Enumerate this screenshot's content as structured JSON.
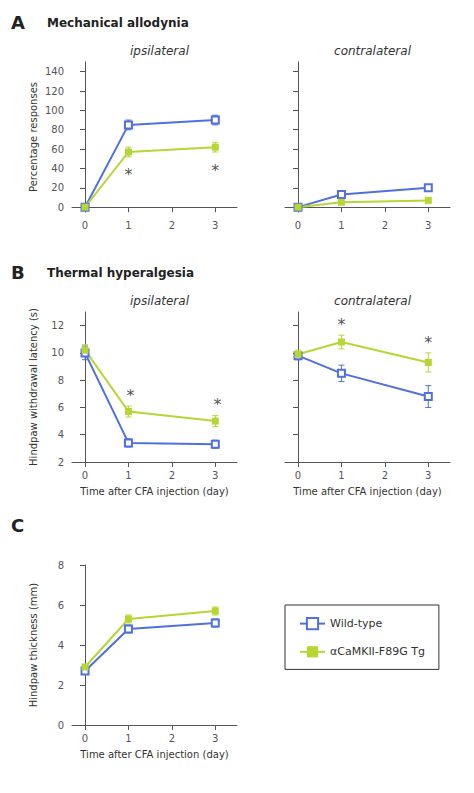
{
  "chart_data": [
    {
      "type": "line",
      "panel": "A",
      "title": "Mechanical allodynia",
      "subtitle": "ipsilateral",
      "x": [
        0,
        1,
        3
      ],
      "series": [
        {
          "name": "Wild-type",
          "marker": "square-open",
          "values": [
            0,
            85,
            90
          ],
          "errors": [
            0,
            5,
            5
          ]
        },
        {
          "name": "αCaMKII-F89G Tg",
          "marker": "square",
          "values": [
            0,
            57,
            62
          ],
          "errors": [
            0,
            5,
            5
          ]
        }
      ],
      "ylabel": "Percentage responses",
      "xlim": [
        -0.3,
        3.5
      ],
      "xticks": [
        0,
        1,
        2,
        3
      ],
      "ylim": [
        -5,
        150
      ],
      "yticks": [
        0,
        20,
        40,
        60,
        80,
        100,
        120,
        140
      ],
      "grid": false,
      "annotations": [
        {
          "text": "*",
          "x": 1.0,
          "y": 26
        },
        {
          "text": "*",
          "x": 3.0,
          "y": 30
        }
      ]
    },
    {
      "type": "line",
      "subtitle": "contralateral",
      "x": [
        0,
        1,
        3
      ],
      "series": [
        {
          "name": "Wild-type",
          "marker": "square-open",
          "values": [
            0,
            13,
            20
          ],
          "errors": [
            0,
            3,
            3
          ]
        },
        {
          "name": "αCaMKII-F89G Tg",
          "marker": "square",
          "values": [
            0,
            5,
            7
          ],
          "errors": [
            0,
            2,
            2
          ]
        }
      ],
      "xlim": [
        -0.3,
        3.5
      ],
      "xticks": [
        0,
        1,
        2,
        3
      ],
      "ylim": [
        -5,
        150
      ],
      "yticks": [
        0,
        20,
        40,
        60,
        80,
        100,
        120,
        140
      ],
      "grid": false,
      "tick_labels": "x"
    },
    {
      "type": "line",
      "panel": "B",
      "title": "Thermal hyperalgesia",
      "subtitle": "ipsilateral",
      "x": [
        0,
        1,
        3
      ],
      "series": [
        {
          "name": "Wild-type",
          "marker": "square-open",
          "values": [
            10.0,
            3.4,
            3.3
          ],
          "errors": [
            0.5,
            0.3,
            0.3
          ]
        },
        {
          "name": "αCaMKII-F89G Tg",
          "marker": "square",
          "values": [
            10.2,
            5.7,
            5.0
          ],
          "errors": [
            0.4,
            0.4,
            0.4
          ]
        }
      ],
      "xlabel": "Time after CFA injection (day)",
      "ylabel": "Hindpaw withdrawal latency (s)",
      "xlim": [
        -0.3,
        3.5
      ],
      "xticks": [
        0,
        1,
        2,
        3
      ],
      "ylim": [
        2,
        13
      ],
      "yticks": [
        2,
        4,
        6,
        8,
        10,
        12
      ],
      "grid": false,
      "annotations": [
        {
          "text": "*",
          "x": 1.05,
          "y": 6.3
        },
        {
          "text": "*",
          "x": 3.05,
          "y": 5.6
        }
      ]
    },
    {
      "type": "line",
      "subtitle": "contralateral",
      "x": [
        0,
        1,
        3
      ],
      "series": [
        {
          "name": "Wild-type",
          "marker": "square-open",
          "values": [
            9.8,
            8.5,
            6.8
          ],
          "errors": [
            0.3,
            0.6,
            0.8
          ]
        },
        {
          "name": "αCaMKII-F89G Tg",
          "marker": "square",
          "values": [
            9.9,
            10.8,
            9.3
          ],
          "errors": [
            0.3,
            0.5,
            0.7
          ]
        }
      ],
      "xlabel": "Time after CFA injection (day)",
      "xlim": [
        -0.3,
        3.5
      ],
      "xticks": [
        0,
        1,
        2,
        3
      ],
      "ylim": [
        2,
        13
      ],
      "yticks": [
        2,
        4,
        6,
        8,
        10,
        12
      ],
      "grid": false,
      "tick_labels": "x",
      "annotations": [
        {
          "text": "*",
          "x": 1.0,
          "y": 11.5
        },
        {
          "text": "*",
          "x": 3.0,
          "y": 10.2
        }
      ]
    },
    {
      "type": "line",
      "panel": "C",
      "x": [
        0,
        1,
        3
      ],
      "series": [
        {
          "name": "Wild-type",
          "marker": "square-open",
          "values": [
            2.7,
            4.8,
            5.1
          ],
          "errors": [
            0.1,
            0.2,
            0.2
          ]
        },
        {
          "name": "αCaMKII-F89G Tg",
          "marker": "square",
          "values": [
            2.9,
            5.3,
            5.7
          ],
          "errors": [
            0.1,
            0.2,
            0.2
          ]
        }
      ],
      "xlabel": "Time after CFA injection (day)",
      "ylabel": "Hindpaw thickness (mm)",
      "xlim": [
        -0.3,
        3.5
      ],
      "xticks": [
        0,
        1,
        2,
        3
      ],
      "ylim": [
        0,
        8
      ],
      "yticks": [
        0,
        2,
        4,
        6,
        8
      ],
      "grid": false,
      "legend": "right"
    }
  ]
}
